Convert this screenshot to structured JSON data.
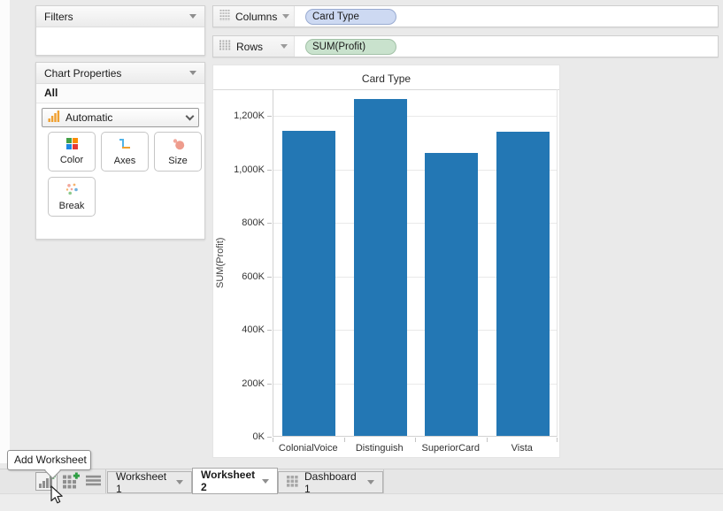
{
  "window": {
    "background": "#eaeaea"
  },
  "filters_panel": {
    "title": "Filters"
  },
  "chart_properties_panel": {
    "title": "Chart Properties",
    "scope_label": "All",
    "mark_type": {
      "label": "Automatic",
      "icon": "bar-chart-icon"
    },
    "buttons": [
      {
        "label": "Color",
        "icon": "color-grid-icon"
      },
      {
        "label": "Axes",
        "icon": "axes-icon"
      },
      {
        "label": "Size",
        "icon": "size-circles-icon"
      },
      {
        "label": "Break",
        "icon": "break-scatter-icon"
      }
    ]
  },
  "shelves": {
    "columns": {
      "label": "Columns",
      "pill": {
        "text": "Card Type",
        "fill": "#cdd9f2",
        "border": "#99abd1"
      }
    },
    "rows": {
      "label": "Rows",
      "pill": {
        "text": "SUM(Profit)",
        "fill": "#c9e2cd",
        "border": "#a2c1a7"
      }
    }
  },
  "chart_data": {
    "type": "bar",
    "title": "Card Type",
    "xlabel": "",
    "ylabel": "SUM(Profit)",
    "categories": [
      "ColonialVoice",
      "Distinguish",
      "SuperiorCard",
      "Vista"
    ],
    "values": [
      1140000,
      1260000,
      1058000,
      1137000
    ],
    "ylim": [
      0,
      1300000
    ],
    "ytick_values": [
      0,
      200000,
      400000,
      600000,
      800000,
      1000000,
      1200000
    ],
    "ytick_labels": [
      "0K",
      "200K",
      "400K",
      "600K",
      "800K",
      "1,000K",
      "1,200K"
    ],
    "bar_color": "#2377b4",
    "grid": true,
    "legend": false
  },
  "sheet_bar": {
    "tooltip": "Add Worksheet",
    "buttons": [
      {
        "name": "add-worksheet",
        "icon": "bar-chart-plus-icon"
      },
      {
        "name": "add-dashboard",
        "icon": "grid-plus-icon"
      },
      {
        "name": "sheet-list",
        "icon": "list-icon"
      }
    ],
    "tabs": [
      {
        "label": "Worksheet 1",
        "active": false
      },
      {
        "label": "Worksheet 2",
        "active": true
      },
      {
        "label": "Dashboard 1",
        "active": false,
        "icon": "dashboard-grid-icon"
      }
    ]
  }
}
